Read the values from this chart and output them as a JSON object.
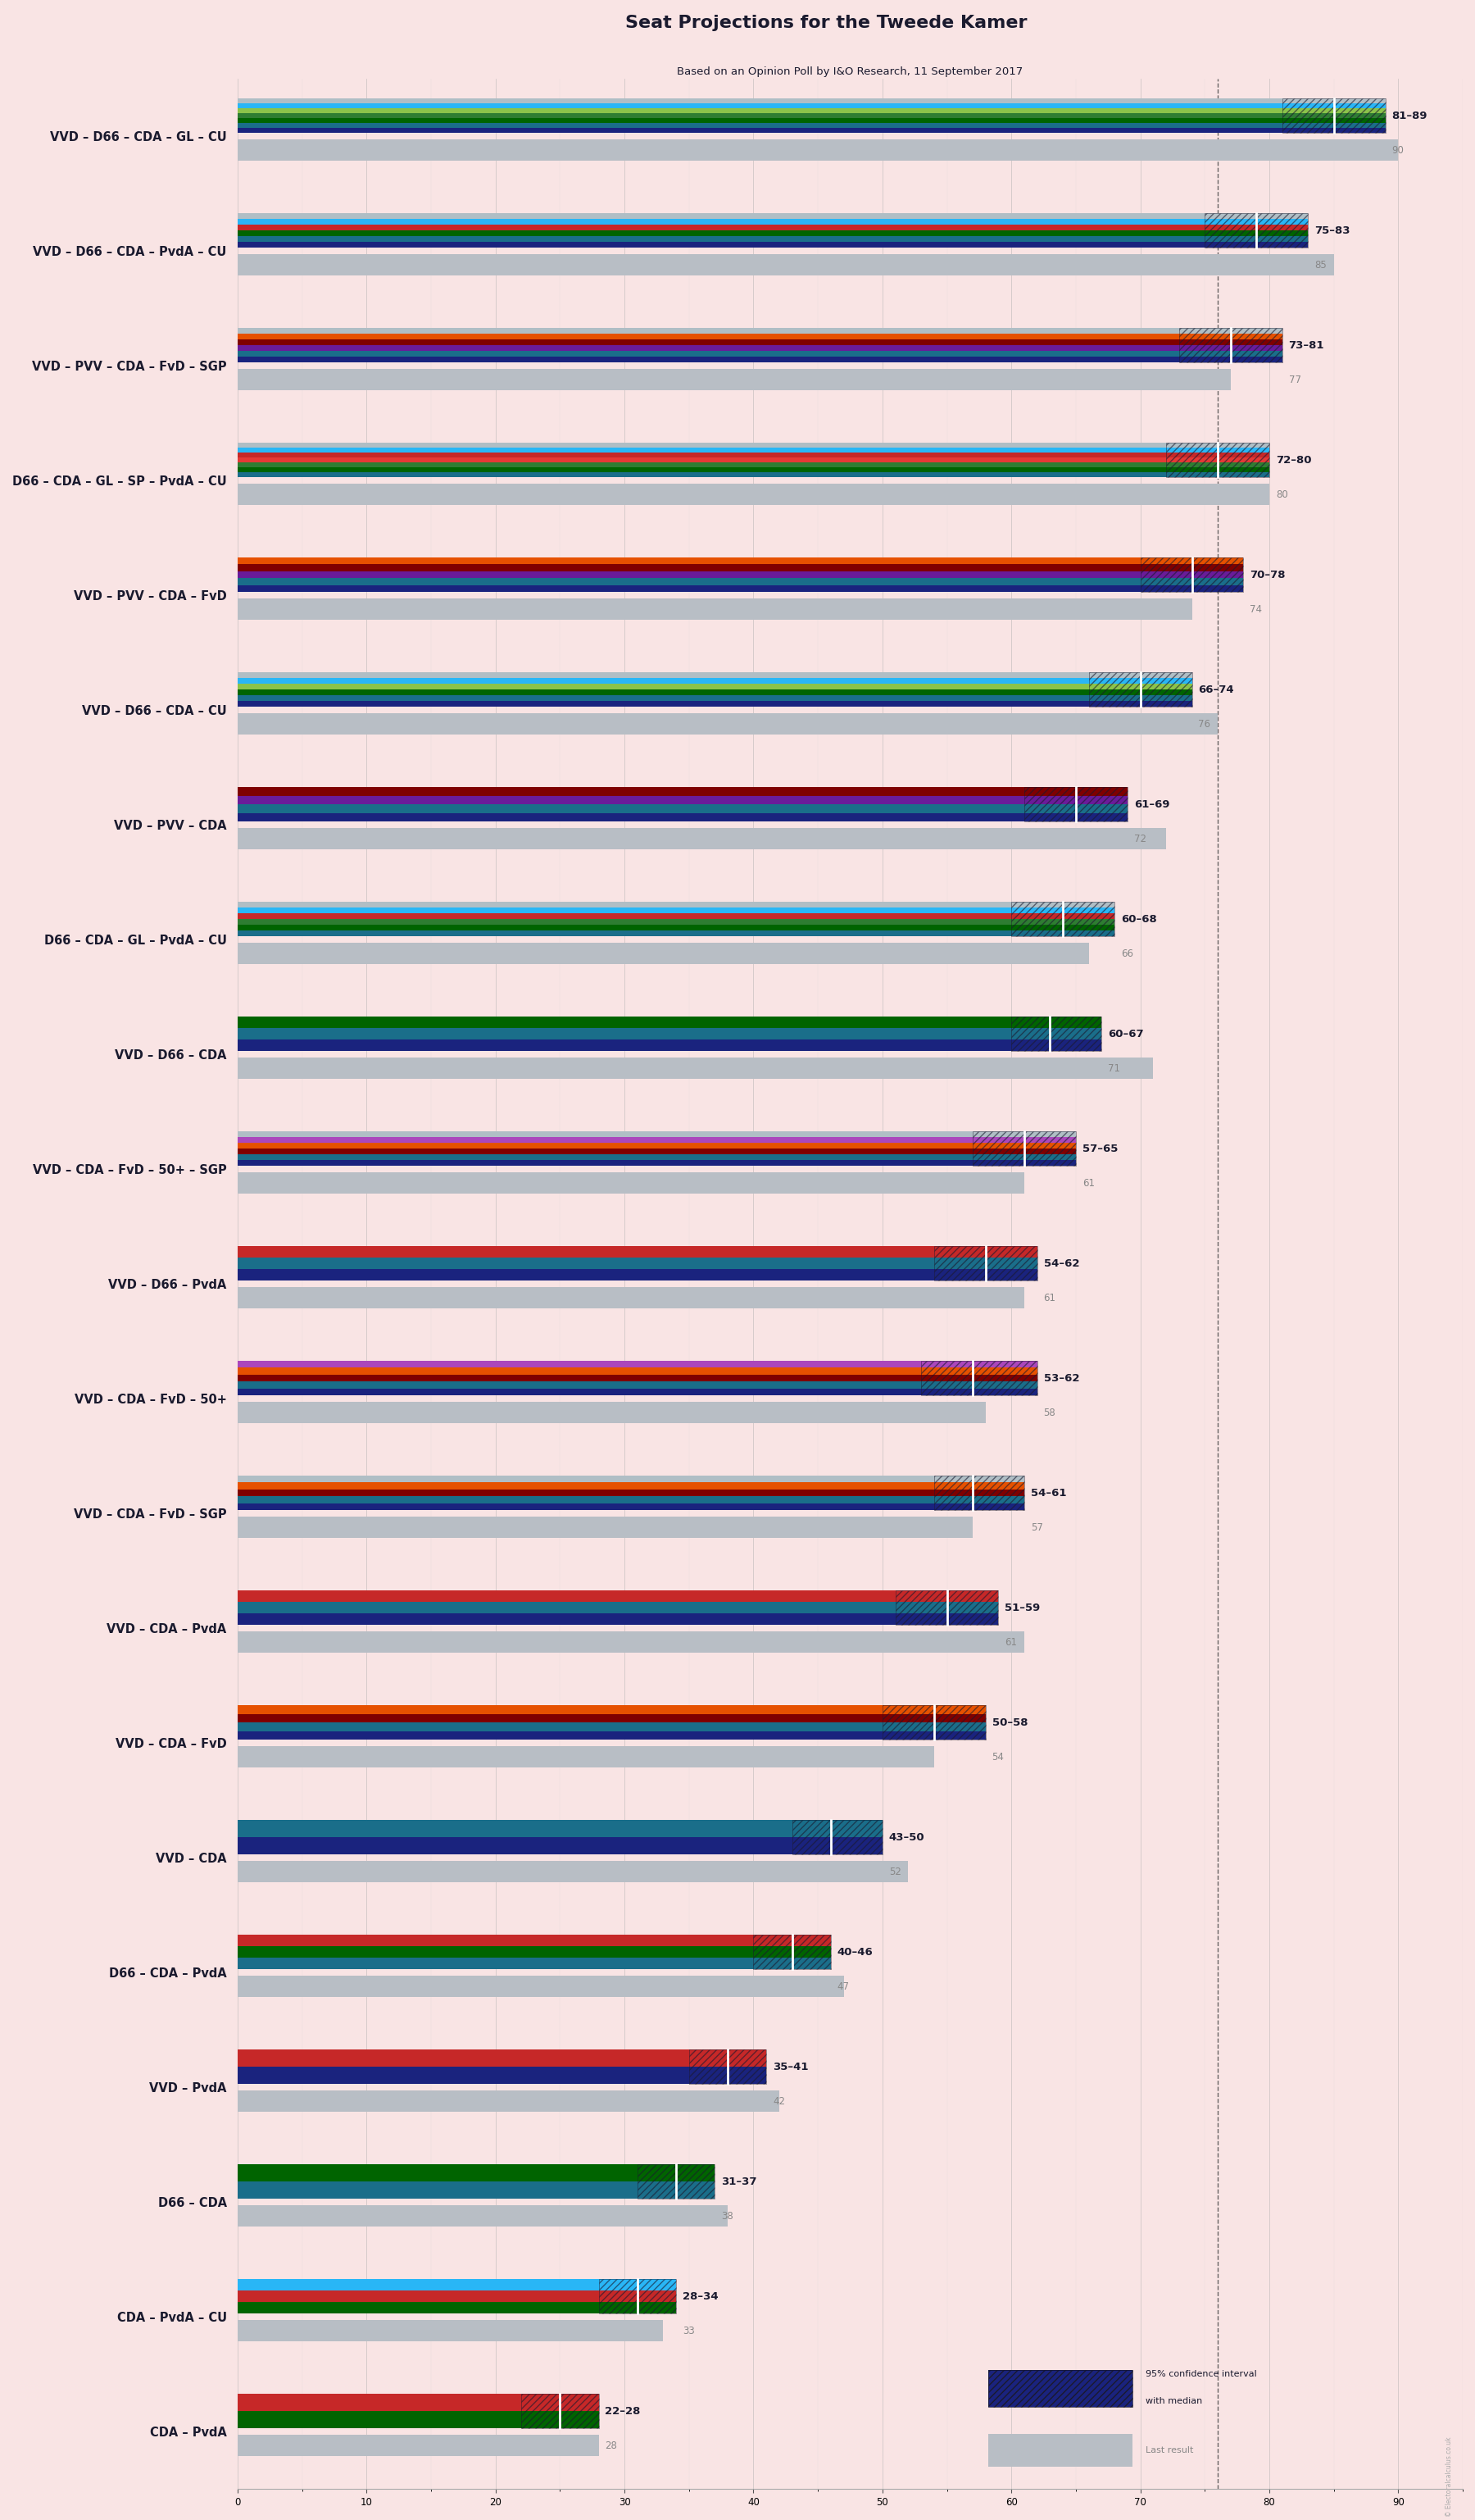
{
  "title": "Seat Projections for the Tweede Kamer",
  "subtitle": "Based on an Opinion Poll by I&O Research, 11 September 2017",
  "background_color": "#f9e4e4",
  "xlim_max": 95,
  "majority_line": 76,
  "coalitions": [
    {
      "label": "VVD – D66 – CDA – GL – CU",
      "low": 81,
      "high": 89,
      "median": 85,
      "last": 90,
      "underline": false,
      "stripe_colors": [
        "#1a237e",
        "#1a6e8a",
        "#006400",
        "#2e7d32",
        "#8bc34a",
        "#29b6f6",
        "#b0bec5"
      ]
    },
    {
      "label": "VVD – D66 – CDA – PvdA – CU",
      "low": 75,
      "high": 83,
      "median": 79,
      "last": 85,
      "underline": false,
      "stripe_colors": [
        "#1a237e",
        "#1a6e8a",
        "#006400",
        "#c62828",
        "#29b6f6",
        "#b0bec5"
      ]
    },
    {
      "label": "VVD – PVV – CDA – FvD – SGP",
      "low": 73,
      "high": 81,
      "median": 77,
      "last": 77,
      "underline": false,
      "stripe_colors": [
        "#1a237e",
        "#1a6e8a",
        "#6a1b9a",
        "#7f0000",
        "#e65100",
        "#b0bec5"
      ]
    },
    {
      "label": "D66 – CDA – GL – SP – PvdA – CU",
      "low": 72,
      "high": 80,
      "median": 76,
      "last": 80,
      "underline": false,
      "stripe_colors": [
        "#1a6e8a",
        "#006400",
        "#2e7d32",
        "#e53935",
        "#c62828",
        "#29b6f6",
        "#b0bec5"
      ]
    },
    {
      "label": "VVD – PVV – CDA – FvD",
      "low": 70,
      "high": 78,
      "median": 74,
      "last": 74,
      "underline": false,
      "stripe_colors": [
        "#1a237e",
        "#1a6e8a",
        "#6a1b9a",
        "#7f0000",
        "#e65100"
      ]
    },
    {
      "label": "VVD – D66 – CDA – CU",
      "low": 66,
      "high": 74,
      "median": 70,
      "last": 76,
      "underline": true,
      "stripe_colors": [
        "#1a237e",
        "#1a6e8a",
        "#006400",
        "#8bc34a",
        "#29b6f6",
        "#b0bec5"
      ]
    },
    {
      "label": "VVD – PVV – CDA",
      "low": 61,
      "high": 69,
      "median": 65,
      "last": 72,
      "underline": false,
      "stripe_colors": [
        "#1a237e",
        "#1a6e8a",
        "#6a1b9a",
        "#7f0000"
      ]
    },
    {
      "label": "D66 – CDA – GL – PvdA – CU",
      "low": 60,
      "high": 68,
      "median": 64,
      "last": 66,
      "underline": false,
      "stripe_colors": [
        "#1a6e8a",
        "#006400",
        "#2e7d32",
        "#c62828",
        "#29b6f6",
        "#b0bec5"
      ]
    },
    {
      "label": "VVD – D66 – CDA",
      "low": 60,
      "high": 67,
      "median": 63,
      "last": 71,
      "underline": false,
      "stripe_colors": [
        "#1a237e",
        "#1a6e8a",
        "#006400"
      ]
    },
    {
      "label": "VVD – CDA – FvD – 50+ – SGP",
      "low": 57,
      "high": 65,
      "median": 61,
      "last": 61,
      "underline": false,
      "stripe_colors": [
        "#1a237e",
        "#1a6e8a",
        "#7f0000",
        "#e65100",
        "#ab47bc",
        "#b0bec5"
      ]
    },
    {
      "label": "VVD – D66 – PvdA",
      "low": 54,
      "high": 62,
      "median": 58,
      "last": 61,
      "underline": false,
      "stripe_colors": [
        "#1a237e",
        "#1a6e8a",
        "#c62828"
      ]
    },
    {
      "label": "VVD – CDA – FvD – 50+",
      "low": 53,
      "high": 62,
      "median": 57,
      "last": 58,
      "underline": false,
      "stripe_colors": [
        "#1a237e",
        "#1a6e8a",
        "#7f0000",
        "#e65100",
        "#ab47bc"
      ]
    },
    {
      "label": "VVD – CDA – FvD – SGP",
      "low": 54,
      "high": 61,
      "median": 57,
      "last": 57,
      "underline": false,
      "stripe_colors": [
        "#1a237e",
        "#1a6e8a",
        "#7f0000",
        "#e65100",
        "#b0bec5"
      ]
    },
    {
      "label": "VVD – CDA – PvdA",
      "low": 51,
      "high": 59,
      "median": 55,
      "last": 61,
      "underline": false,
      "stripe_colors": [
        "#1a237e",
        "#1a6e8a",
        "#c62828"
      ]
    },
    {
      "label": "VVD – CDA – FvD",
      "low": 50,
      "high": 58,
      "median": 54,
      "last": 54,
      "underline": false,
      "stripe_colors": [
        "#1a237e",
        "#1a6e8a",
        "#7f0000",
        "#e65100"
      ]
    },
    {
      "label": "VVD – CDA",
      "low": 43,
      "high": 50,
      "median": 46,
      "last": 52,
      "underline": false,
      "stripe_colors": [
        "#1a237e",
        "#1a6e8a"
      ]
    },
    {
      "label": "D66 – CDA – PvdA",
      "low": 40,
      "high": 46,
      "median": 43,
      "last": 47,
      "underline": false,
      "stripe_colors": [
        "#1a6e8a",
        "#006400",
        "#c62828"
      ]
    },
    {
      "label": "VVD – PvdA",
      "low": 35,
      "high": 41,
      "median": 38,
      "last": 42,
      "underline": false,
      "stripe_colors": [
        "#1a237e",
        "#c62828"
      ]
    },
    {
      "label": "D66 – CDA",
      "low": 31,
      "high": 37,
      "median": 34,
      "last": 38,
      "underline": false,
      "stripe_colors": [
        "#1a6e8a",
        "#006400"
      ]
    },
    {
      "label": "CDA – PvdA – CU",
      "low": 28,
      "high": 34,
      "median": 31,
      "last": 33,
      "underline": false,
      "stripe_colors": [
        "#006400",
        "#c62828",
        "#29b6f6"
      ]
    },
    {
      "label": "CDA – PvdA",
      "low": 22,
      "high": 28,
      "median": 25,
      "last": 28,
      "underline": false,
      "stripe_colors": [
        "#006400",
        "#c62828"
      ]
    }
  ]
}
